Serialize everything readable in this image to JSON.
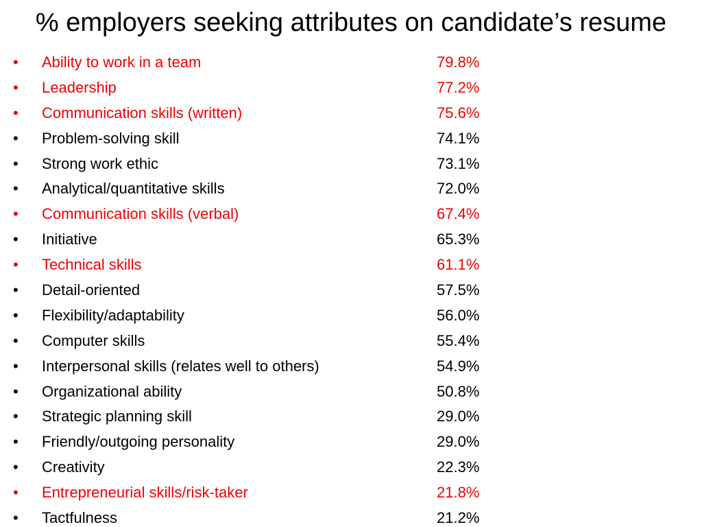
{
  "slide": {
    "title": "% employers seeking attributes on candidate’s resume",
    "bullet_char": "•",
    "colors": {
      "highlight": "#ee0000",
      "normal": "#000000"
    },
    "items": [
      {
        "label": "Ability to work in a team",
        "value": "79.8%",
        "highlight": true
      },
      {
        "label": "Leadership",
        "value": "77.2%",
        "highlight": true
      },
      {
        "label": "Communication skills (written)",
        "value": "75.6%",
        "highlight": true
      },
      {
        "label": "Problem-solving skill",
        "value": "74.1%",
        "highlight": false
      },
      {
        "label": "Strong work ethic",
        "value": "73.1%",
        "highlight": false
      },
      {
        "label": "Analytical/quantitative skills",
        "value": "72.0%",
        "highlight": false
      },
      {
        "label": "Communication skills (verbal)",
        "value": "67.4%",
        "highlight": true
      },
      {
        "label": "Initiative",
        "value": "65.3%",
        "highlight": false
      },
      {
        "label": "Technical skills",
        "value": "61.1%",
        "highlight": true
      },
      {
        "label": "Detail-oriented",
        "value": "57.5%",
        "highlight": false
      },
      {
        "label": "Flexibility/adaptability",
        "value": "56.0%",
        "highlight": false
      },
      {
        "label": "Computer skills",
        "value": "55.4%",
        "highlight": false
      },
      {
        "label": "Interpersonal skills (relates well to others)",
        "value": "54.9%",
        "highlight": false
      },
      {
        "label": "Organizational ability",
        "value": "50.8%",
        "highlight": false
      },
      {
        "label": "Strategic planning skill",
        "value": "29.0%",
        "highlight": false
      },
      {
        "label": "Friendly/outgoing personality",
        "value": "29.0%",
        "highlight": false
      },
      {
        "label": "Creativity",
        "value": "22.3%",
        "highlight": false
      },
      {
        "label": "Entrepreneurial skills/risk-taker",
        "value": "21.8%",
        "highlight": true
      },
      {
        "label": "Tactfulness",
        "value": "21.2%",
        "highlight": false
      }
    ]
  }
}
